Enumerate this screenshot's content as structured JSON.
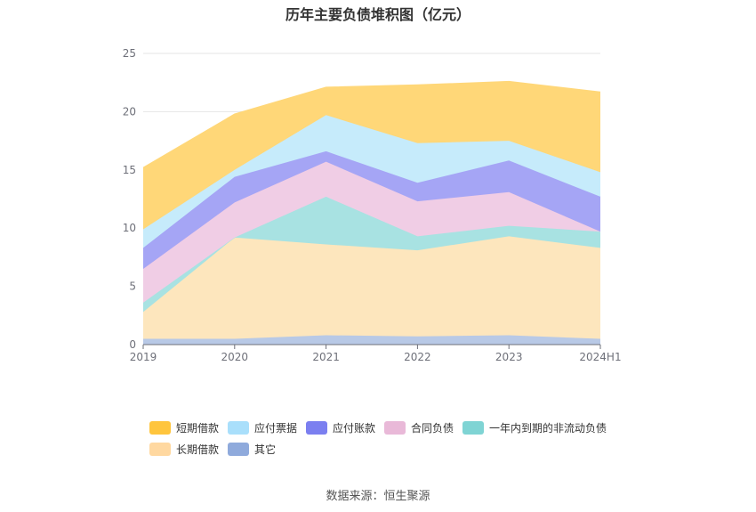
{
  "title": "历年主要负债堆积图（亿元）",
  "source": "数据来源：恒生聚源",
  "chart_data": {
    "type": "area",
    "stacked": true,
    "categories": [
      "2019",
      "2020",
      "2021",
      "2022",
      "2023",
      "2024H1"
    ],
    "ylim": [
      0,
      25
    ],
    "yticks": [
      "0",
      "5",
      "10",
      "15",
      "20",
      "25"
    ],
    "grid": true,
    "legend_position": "bottom",
    "series": [
      {
        "name": "其它",
        "color": "#8faadc",
        "area_color": "#b8c9e6",
        "values": [
          0.5,
          0.5,
          0.8,
          0.7,
          0.8,
          0.5
        ]
      },
      {
        "name": "长期借款",
        "color": "#ffd8a0",
        "area_color": "#fde6bd",
        "values": [
          2.3,
          8.7,
          7.8,
          7.4,
          8.5,
          7.8
        ]
      },
      {
        "name": "一年内到期的非流动负债",
        "color": "#7fd4d4",
        "area_color": "#a8e2e2",
        "values": [
          0.8,
          0.0,
          4.1,
          1.2,
          0.9,
          1.4
        ]
      },
      {
        "name": "合同负债",
        "color": "#e9b9d8",
        "area_color": "#f0cde5",
        "values": [
          2.9,
          3.0,
          3.0,
          3.0,
          2.9,
          0.0
        ]
      },
      {
        "name": "应付账款",
        "color": "#7b7ff0",
        "area_color": "#a5a5f5",
        "values": [
          1.8,
          2.2,
          0.9,
          1.6,
          2.7,
          3.0
        ]
      },
      {
        "name": "应付票据",
        "color": "#a9dffb",
        "area_color": "#c6ebfb",
        "values": [
          1.6,
          0.6,
          3.1,
          3.4,
          1.7,
          2.1
        ]
      },
      {
        "name": "短期借款",
        "color": "#ffc53d",
        "area_color": "#ffd778",
        "values": [
          5.3,
          4.8,
          2.4,
          5.0,
          5.1,
          6.9
        ]
      }
    ]
  },
  "legend_items": [
    {
      "name": "短期借款",
      "color": "#ffc53d"
    },
    {
      "name": "应付票据",
      "color": "#a9dffb"
    },
    {
      "name": "应付账款",
      "color": "#7b7ff0"
    },
    {
      "name": "合同负债",
      "color": "#e9b9d8"
    },
    {
      "name": "一年内到期的非流动负债",
      "color": "#7fd4d4"
    },
    {
      "name": "长期借款",
      "color": "#ffd8a0"
    },
    {
      "name": "其它",
      "color": "#8faadc"
    }
  ]
}
